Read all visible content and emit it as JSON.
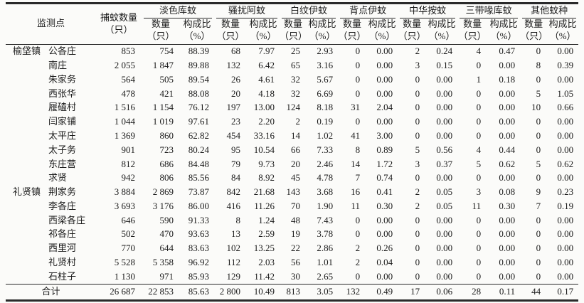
{
  "table": {
    "header": {
      "site": "监测点",
      "capture_line1": "捕蚊数量",
      "capture_line2": "（只）",
      "groups": [
        {
          "name": "淡色库蚊"
        },
        {
          "name": "骚扰阿蚊"
        },
        {
          "name": "白纹伊蚊"
        },
        {
          "name": "背点伊蚊"
        },
        {
          "name": "中华按蚊"
        },
        {
          "name": "三带喙库蚊"
        },
        {
          "name": "其他蚊种"
        }
      ],
      "sub_count_line1": "数量",
      "sub_count_line2": "（只）",
      "sub_ratio_line1": "构成比",
      "sub_ratio_line2": "（%）"
    },
    "rows": [
      {
        "town": "榆垡镇",
        "village": "公各庄",
        "total": "853",
        "cells": [
          "754",
          "88.39",
          "68",
          "7.97",
          "25",
          "2.93",
          "0",
          "0.00",
          "2",
          "0.24",
          "4",
          "0.47",
          "0",
          "0.00"
        ]
      },
      {
        "town": "",
        "village": "南庄",
        "total": "2 055",
        "cells": [
          "1 847",
          "89.88",
          "132",
          "6.42",
          "65",
          "3.16",
          "0",
          "0.00",
          "3",
          "0.15",
          "0",
          "0.00",
          "8",
          "0.39"
        ]
      },
      {
        "town": "",
        "village": "朱家务",
        "total": "564",
        "cells": [
          "505",
          "89.54",
          "26",
          "4.61",
          "32",
          "5.67",
          "0",
          "0.00",
          "0",
          "0.00",
          "1",
          "0.18",
          "0",
          "0.00"
        ]
      },
      {
        "town": "",
        "village": "西张华",
        "total": "478",
        "cells": [
          "421",
          "88.08",
          "20",
          "4.18",
          "32",
          "6.69",
          "0",
          "0.00",
          "0",
          "0.00",
          "0",
          "0.00",
          "5",
          "1.05"
        ]
      },
      {
        "town": "",
        "village": "履磕村",
        "total": "1 516",
        "cells": [
          "1 154",
          "76.12",
          "197",
          "13.00",
          "124",
          "8.18",
          "31",
          "2.04",
          "0",
          "0.00",
          "0",
          "0.00",
          "10",
          "0.66"
        ]
      },
      {
        "town": "",
        "village": "闫家铺",
        "total": "1 044",
        "cells": [
          "1 019",
          "97.61",
          "23",
          "2.20",
          "2",
          "0.19",
          "0",
          "0.00",
          "0",
          "0.00",
          "0",
          "0.00",
          "0",
          "0.00"
        ]
      },
      {
        "town": "",
        "village": "太平庄",
        "total": "1 369",
        "cells": [
          "860",
          "62.82",
          "454",
          "33.16",
          "14",
          "1.02",
          "41",
          "3.00",
          "0",
          "0.00",
          "0",
          "0.00",
          "0",
          "0.00"
        ]
      },
      {
        "town": "",
        "village": "太子务",
        "total": "901",
        "cells": [
          "723",
          "80.24",
          "95",
          "10.54",
          "66",
          "7.33",
          "8",
          "0.89",
          "5",
          "0.56",
          "4",
          "0.44",
          "0",
          "0.00"
        ]
      },
      {
        "town": "",
        "village": "东庄营",
        "total": "812",
        "cells": [
          "686",
          "84.48",
          "79",
          "9.73",
          "20",
          "2.46",
          "14",
          "1.72",
          "3",
          "0.37",
          "5",
          "0.62",
          "5",
          "0.62"
        ]
      },
      {
        "town": "",
        "village": "求贤",
        "total": "942",
        "cells": [
          "806",
          "85.56",
          "84",
          "8.92",
          "45",
          "4.78",
          "7",
          "0.74",
          "0",
          "0.00",
          "0",
          "0.00",
          "0",
          "0.00"
        ]
      },
      {
        "town": "礼贤镇",
        "village": "荆家务",
        "total": "3 884",
        "cells": [
          "2 869",
          "73.87",
          "842",
          "21.68",
          "143",
          "3.68",
          "16",
          "0.41",
          "2",
          "0.05",
          "3",
          "0.08",
          "9",
          "0.23"
        ]
      },
      {
        "town": "",
        "village": "李各庄",
        "total": "3 693",
        "cells": [
          "3 176",
          "86.00",
          "416",
          "11.26",
          "70",
          "1.90",
          "11",
          "0.30",
          "2",
          "0.05",
          "11",
          "0.30",
          "7",
          "0.19"
        ]
      },
      {
        "town": "",
        "village": "西梁各庄",
        "total": "646",
        "cells": [
          "590",
          "91.33",
          "8",
          "1.24",
          "48",
          "7.43",
          "0",
          "0.00",
          "0",
          "0.00",
          "0",
          "0.00",
          "0",
          "0.00"
        ]
      },
      {
        "town": "",
        "village": "祁各庄",
        "total": "502",
        "cells": [
          "470",
          "93.63",
          "13",
          "2.59",
          "19",
          "3.78",
          "0",
          "0.00",
          "0",
          "0.00",
          "0",
          "0.00",
          "0",
          "0.00"
        ]
      },
      {
        "town": "",
        "village": "西里河",
        "total": "770",
        "cells": [
          "644",
          "83.63",
          "102",
          "13.25",
          "22",
          "2.86",
          "2",
          "0.26",
          "0",
          "0.00",
          "0",
          "0.00",
          "0",
          "0.00"
        ]
      },
      {
        "town": "",
        "village": "礼贤村",
        "total": "5 528",
        "cells": [
          "5 358",
          "96.92",
          "112",
          "2.03",
          "56",
          "1.01",
          "2",
          "0.04",
          "0",
          "0.00",
          "0",
          "0.00",
          "0",
          "0.00"
        ]
      },
      {
        "town": "",
        "village": "石柱子",
        "total": "1 130",
        "cells": [
          "971",
          "85.93",
          "129",
          "11.42",
          "30",
          "2.65",
          "0",
          "0.00",
          "0",
          "0.00",
          "0",
          "0.00",
          "0",
          "0.00"
        ]
      }
    ],
    "total_row": {
      "label": "合计",
      "total": "26 687",
      "cells": [
        "22 853",
        "85.63",
        "2 800",
        "10.49",
        "813",
        "3.05",
        "132",
        "0.49",
        "17",
        "0.06",
        "28",
        "0.11",
        "44",
        "0.17"
      ]
    }
  }
}
